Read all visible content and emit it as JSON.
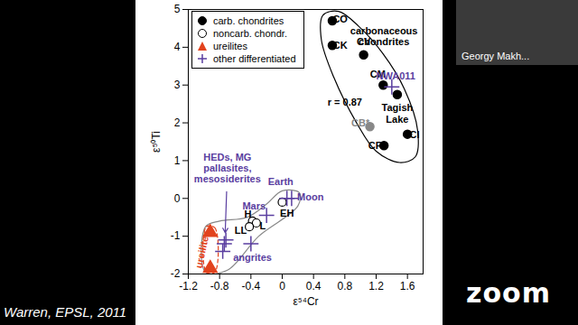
{
  "chart_data": {
    "type": "scatter",
    "xlabel": "ε⁵⁴Cr",
    "ylabel": "ε⁵⁰Ti",
    "xlim": [
      -1.2,
      1.8
    ],
    "xticks": [
      -1.2,
      -0.8,
      -0.4,
      0,
      0.4,
      0.8,
      1.2,
      1.6
    ],
    "ylim": [
      -2,
      5
    ],
    "yticks": [
      -2,
      -1,
      0,
      1,
      2,
      3,
      4,
      5
    ],
    "legend": "top-left",
    "series": [
      {
        "name": "carb. chondrites",
        "marker": "circle",
        "color": "#000000",
        "colors": [
          "#000000",
          "#000000",
          "#000000",
          "#000000",
          "#000000",
          "#000000",
          "#000000",
          "#888888"
        ],
        "x": [
          0.64,
          0.64,
          1.04,
          1.29,
          1.47,
          1.3,
          1.6,
          1.12
        ],
        "y": [
          4.7,
          4.05,
          3.8,
          3.0,
          2.75,
          1.4,
          1.7,
          1.9
        ]
      },
      {
        "name": "noncarb. chondr.",
        "marker": "circle_open",
        "color": "#000000",
        "x": [
          0.0,
          -0.38,
          -0.33,
          -0.42
        ],
        "y": [
          -0.1,
          -0.6,
          -0.65,
          -0.75
        ]
      },
      {
        "name": "ureilites",
        "marker": "triangle",
        "color": "#e2431e",
        "x": [
          -0.92,
          -0.92
        ],
        "y": [
          -0.9,
          -1.85
        ]
      },
      {
        "name": "other differentiated",
        "marker": "plus",
        "color": "#5a3ea0",
        "x": [
          0.06,
          0.12,
          -0.2,
          1.4,
          -0.4,
          -0.72,
          -0.74,
          -0.76
        ],
        "y": [
          0.0,
          0.0,
          -0.45,
          2.95,
          -1.2,
          -1.1,
          -1.2,
          -1.4
        ]
      }
    ],
    "outlines": [
      {
        "color": "#000000",
        "line_style": "solid",
        "x": [
          0.52,
          0.72,
          0.98,
          1.28,
          1.56,
          1.73,
          1.7,
          1.5,
          1.2,
          0.95,
          0.66,
          0.5
        ],
        "y": [
          4.85,
          4.95,
          4.55,
          3.85,
          2.9,
          1.8,
          1.1,
          0.95,
          1.25,
          2.0,
          3.2,
          4.2
        ]
      },
      {
        "color": "#888888",
        "line_style": "solid",
        "x": [
          -0.98,
          -0.98,
          -0.8,
          -0.45,
          -0.2,
          0.0,
          0.22,
          0.2,
          -0.3,
          -0.7
        ],
        "y": [
          -1.95,
          -0.75,
          -0.6,
          -0.5,
          -0.15,
          0.2,
          0.15,
          -0.2,
          -1.0,
          -1.9
        ]
      },
      {
        "color": "#e2431e",
        "line_style": "dashed",
        "x": [
          -0.97,
          -0.86,
          -0.86,
          -0.97
        ],
        "y": [
          -0.75,
          -0.78,
          -1.95,
          -1.95
        ]
      }
    ],
    "annotations": [
      {
        "text": "carbonaceous\nchondrites",
        "x": 1.3,
        "y": 4.3,
        "color": "#000000"
      },
      {
        "text": "r = 0.87",
        "x": 0.8,
        "y": 2.55,
        "color": "#000000"
      },
      {
        "text": "CO",
        "x": 0.74,
        "y": 4.75,
        "color": "#000000"
      },
      {
        "text": "CK",
        "x": 0.74,
        "y": 4.05,
        "color": "#000000"
      },
      {
        "text": "CV",
        "x": 1.04,
        "y": 4.15,
        "color": "#000000"
      },
      {
        "text": "CM",
        "x": 1.22,
        "y": 3.3,
        "color": "#000000"
      },
      {
        "text": "Tagish\nLake",
        "x": 1.47,
        "y": 2.25,
        "color": "#000000"
      },
      {
        "text": "CR",
        "x": 1.19,
        "y": 1.4,
        "color": "#000000"
      },
      {
        "text": "CI",
        "x": 1.69,
        "y": 1.7,
        "color": "#000000"
      },
      {
        "text": "CB*",
        "x": 1.0,
        "y": 2.0,
        "color": "#888888"
      },
      {
        "text": "NWA011",
        "x": 1.45,
        "y": 3.25,
        "color": "#5a3ea0"
      },
      {
        "text": "Earth",
        "x": -0.02,
        "y": 0.45,
        "color": "#5a3ea0"
      },
      {
        "text": "Moon",
        "x": 0.36,
        "y": 0.05,
        "color": "#5a3ea0"
      },
      {
        "text": "Mars",
        "x": -0.36,
        "y": -0.2,
        "color": "#5a3ea0"
      },
      {
        "text": "EH",
        "x": 0.06,
        "y": -0.4,
        "color": "#000000"
      },
      {
        "text": "H",
        "x": -0.44,
        "y": -0.42,
        "color": "#000000"
      },
      {
        "text": "L",
        "x": -0.25,
        "y": -0.72,
        "color": "#000000"
      },
      {
        "text": "LL",
        "x": -0.53,
        "y": -0.85,
        "color": "#000000"
      },
      {
        "text": "angrites",
        "x": -0.38,
        "y": -1.55,
        "color": "#5a3ea0"
      },
      {
        "text": "HEDs, MG\npallasites,\nmesosiderites",
        "x": -0.7,
        "y": 0.8,
        "color": "#5a3ea0",
        "arrow_to": [
          -0.73,
          -1.0
        ]
      },
      {
        "text": "ureilites",
        "x": -1.02,
        "y": -1.35,
        "color": "#e2431e"
      }
    ],
    "source": "Warren, EPSL, 2011"
  },
  "screen": {
    "participant": "Georgy Makh...",
    "logo": "zoom"
  }
}
